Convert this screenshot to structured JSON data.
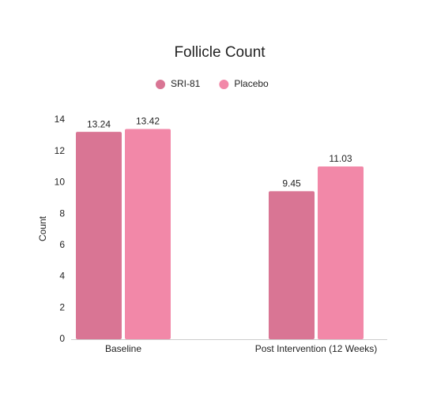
{
  "chart_data": {
    "type": "bar",
    "title": "Follicle Count",
    "y_label": "Count",
    "categories": [
      "Baseline",
      "Post Intervention (12 Weeks)"
    ],
    "series": [
      {
        "name": "SRI-81",
        "color": "#d97594",
        "values": [
          13.24,
          9.45
        ]
      },
      {
        "name": "Placebo",
        "color": "#f288a8",
        "values": [
          13.42,
          11.03
        ]
      }
    ],
    "ylim": [
      0,
      14
    ],
    "yticks": [
      0,
      2,
      4,
      6,
      8,
      10,
      12,
      14
    ],
    "grid": false
  }
}
